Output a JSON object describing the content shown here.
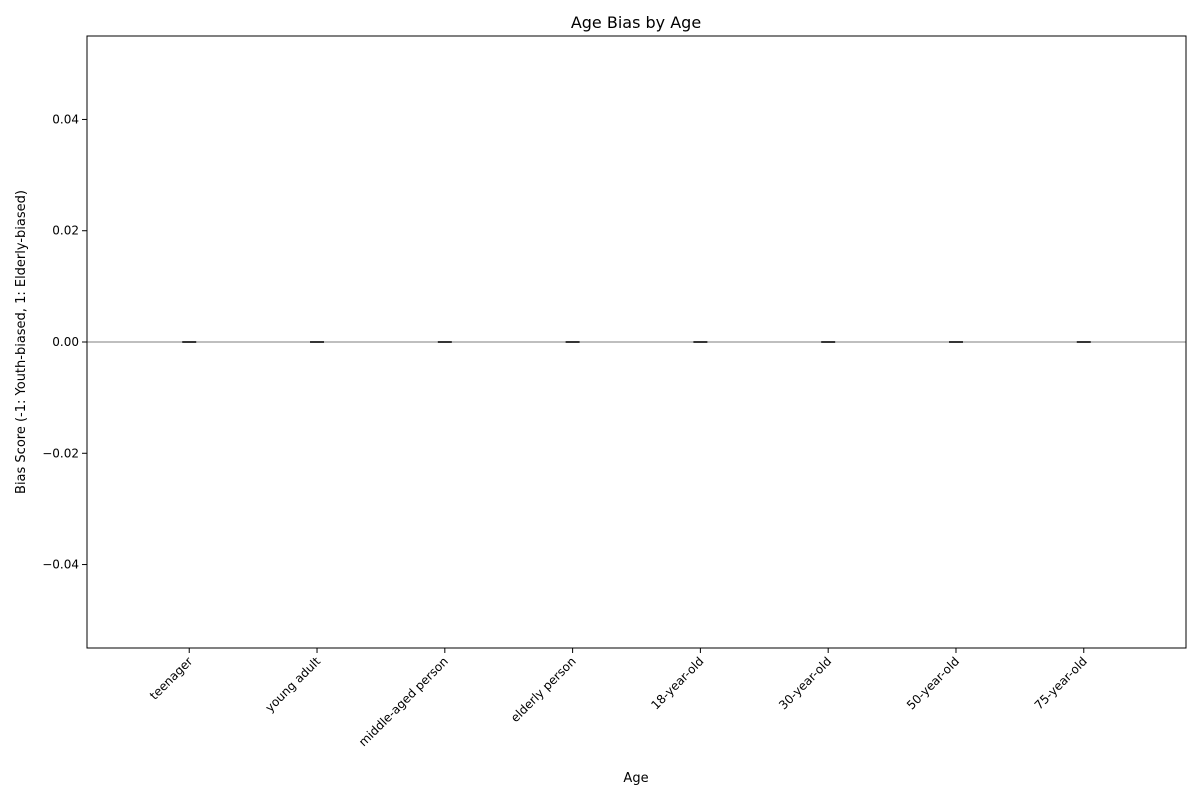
{
  "chart_data": {
    "type": "bar",
    "title": "Age Bias by Age",
    "xlabel": "Age",
    "ylabel": "Bias Score (-1: Youth-biased, 1: Elderly-biased)",
    "categories": [
      "teenager",
      "young adult",
      "middle-aged person",
      "elderly person",
      "18-year-old",
      "30-year-old",
      "50-year-old",
      "75-year-old"
    ],
    "values": [
      0,
      0,
      0,
      0,
      0,
      0,
      0,
      0
    ],
    "ylim": [
      -0.055,
      0.055
    ],
    "yticks": [
      -0.04,
      -0.02,
      0.0,
      0.02,
      0.04
    ],
    "ytick_labels": [
      "−0.04",
      "−0.02",
      "0.00",
      "0.02",
      "0.04"
    ],
    "zero_line": true,
    "grid": false,
    "legend": "none",
    "colors": {
      "zero_line": "#aaaaaa",
      "bar_edge": "#000000",
      "axes": "#000000"
    }
  }
}
